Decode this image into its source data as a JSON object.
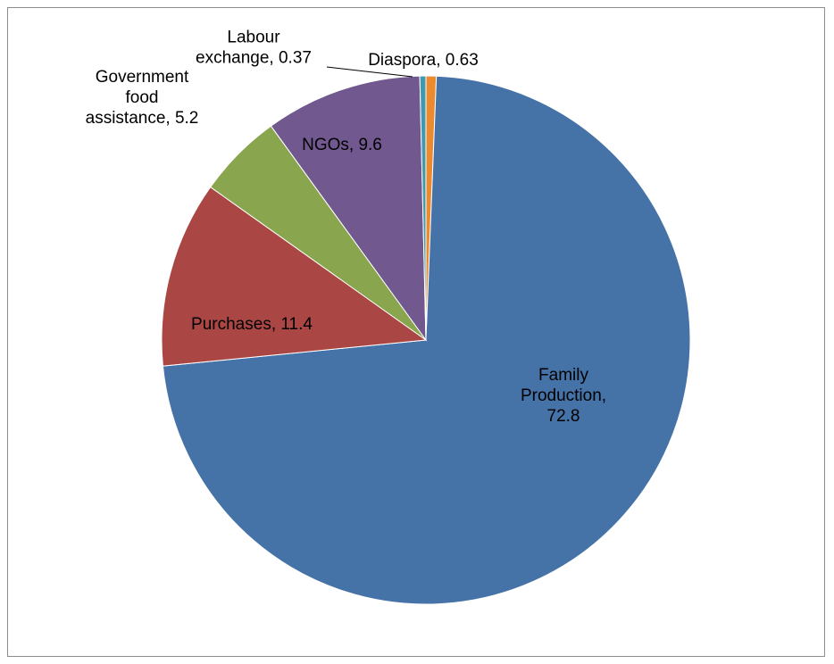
{
  "chart_data": {
    "type": "pie",
    "title": "",
    "series": [
      {
        "slices": [
          {
            "label": "Diaspora",
            "value": 0.63,
            "color": "#EC8A2F",
            "label_lines": [
              "Diaspora, 0.63"
            ]
          },
          {
            "label": "Family Production",
            "value": 72.8,
            "color": "#4572A7",
            "label_lines": [
              "Family",
              "Production,",
              "72.8"
            ]
          },
          {
            "label": "Purchases",
            "value": 11.4,
            "color": "#AA4643",
            "label_lines": [
              "Purchases, 11.4"
            ]
          },
          {
            "label": "Government food assistance",
            "value": 5.2,
            "color": "#89A54E",
            "label_lines": [
              "Government",
              "food",
              "assistance, 5.2"
            ]
          },
          {
            "label": "NGOs",
            "value": 9.6,
            "color": "#71588F",
            "label_lines": [
              "NGOs, 9.6"
            ]
          },
          {
            "label": "Labour exchange",
            "value": 0.37,
            "color": "#4198AF",
            "label_lines": [
              "Labour",
              "exchange, 0.37"
            ]
          }
        ]
      }
    ],
    "legend": "none",
    "data_labels": "category name and value"
  }
}
